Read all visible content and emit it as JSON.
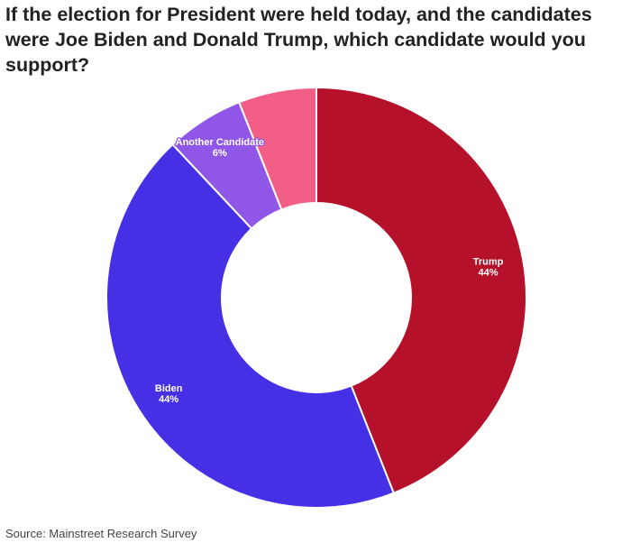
{
  "header": {
    "title": "If the election for President were held today, and the candidates were Joe Biden and Donald Trump, which candidate would you support?"
  },
  "footer": {
    "source": "Source: Mainstreet Research Survey"
  },
  "chart_data": {
    "type": "pie",
    "donut": true,
    "title": "If the election for President were held today, and the candidates were Joe Biden and Donald Trump, which candidate would you support?",
    "slices": [
      {
        "label": "Trump",
        "value": 44,
        "display": "44%",
        "color": "#b5112a"
      },
      {
        "label": "Biden",
        "value": 44,
        "display": "44%",
        "color": "#4630e6"
      },
      {
        "label": "Another Candidate",
        "value": 6,
        "display": "6%",
        "color": "#8f56e8"
      },
      {
        "label": "",
        "value": 6,
        "display": "",
        "color": "#f25e85"
      }
    ],
    "legend": "none"
  }
}
